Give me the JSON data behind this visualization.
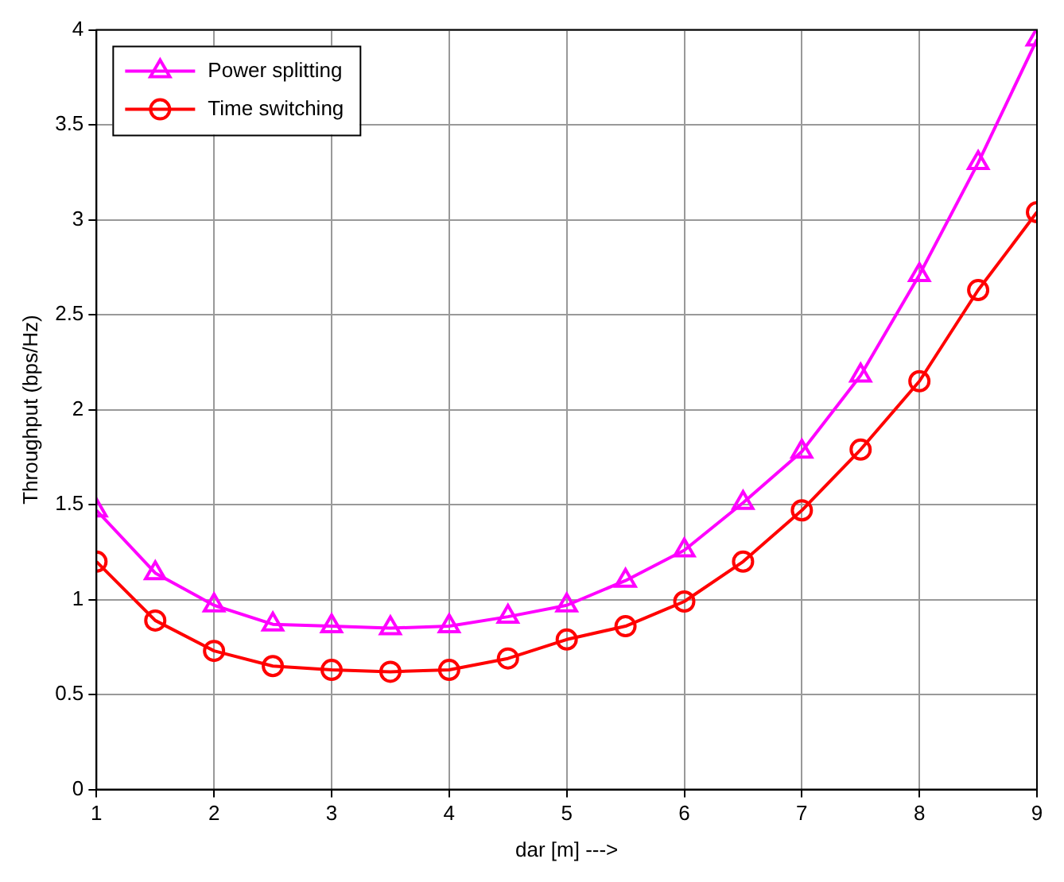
{
  "chart_data": {
    "type": "line",
    "xlabel": "dar [m] --->",
    "ylabel": "Throughput (bps/Hz)",
    "x": [
      1,
      1.5,
      2,
      2.5,
      3,
      3.5,
      4,
      4.5,
      5,
      5.5,
      6,
      6.5,
      7,
      7.5,
      8,
      8.5,
      9
    ],
    "series": [
      {
        "name": "Power splitting",
        "color": "#ff00ff",
        "marker": "triangle",
        "values": [
          1.47,
          1.14,
          0.97,
          0.87,
          0.86,
          0.85,
          0.86,
          0.91,
          0.97,
          1.1,
          1.26,
          1.51,
          1.78,
          2.18,
          2.71,
          3.3,
          3.95
        ]
      },
      {
        "name": "Time switching",
        "color": "#ff0000",
        "marker": "circle",
        "values": [
          1.2,
          0.89,
          0.73,
          0.65,
          0.63,
          0.62,
          0.63,
          0.69,
          0.79,
          0.86,
          0.99,
          1.2,
          1.47,
          1.79,
          2.15,
          2.63,
          3.04
        ]
      }
    ],
    "xlim": [
      1,
      9
    ],
    "ylim": [
      0,
      4
    ],
    "xticks": [
      1,
      2,
      3,
      4,
      5,
      6,
      7,
      8,
      9
    ],
    "yticks": [
      0,
      0.5,
      1,
      1.5,
      2,
      2.5,
      3,
      3.5,
      4
    ],
    "grid": true,
    "legend": "top left",
    "line_style": "solid"
  }
}
